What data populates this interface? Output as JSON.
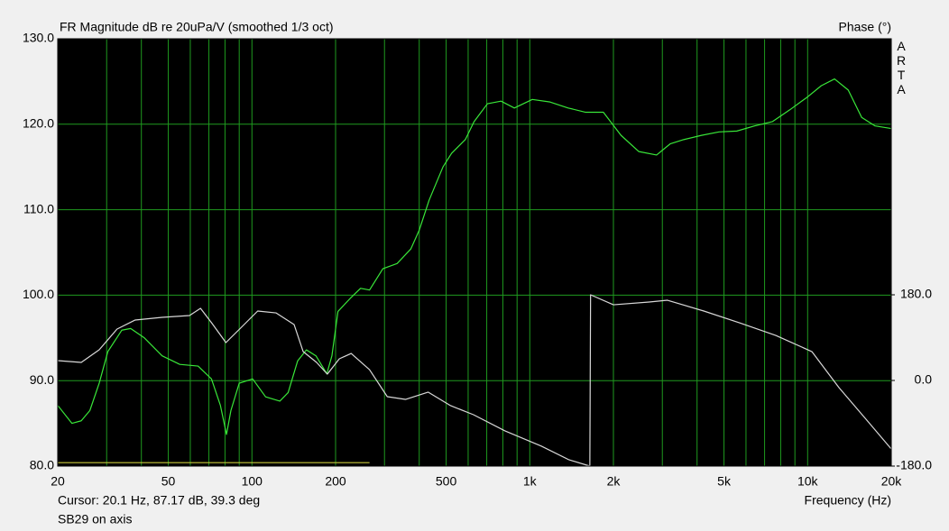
{
  "chart_data": {
    "type": "line",
    "title": "FR Magnitude dB re 20uPa/V (smoothed 1/3 oct)",
    "y2_label": "Phase (°)",
    "x_label": "Frequency (Hz)",
    "brand": "ARTA",
    "cursor_text": "Cursor: 20.1 Hz, 87.17 dB, 39.3 deg",
    "caption": "SB29 on axis",
    "xscale": "log",
    "xlim": [
      20,
      20000
    ],
    "xticks": [
      20,
      50,
      100,
      200,
      500,
      {
        "value": 1000,
        "label": "1k"
      },
      {
        "value": 2000,
        "label": "2k"
      },
      {
        "value": 5000,
        "label": "5k"
      },
      {
        "value": 10000,
        "label": "10k"
      },
      {
        "value": 20000,
        "label": "20k"
      }
    ],
    "xgrid_minor": [
      30,
      40,
      60,
      70,
      80,
      90,
      300,
      400,
      600,
      700,
      800,
      900,
      3000,
      4000,
      6000,
      7000,
      8000,
      9000
    ],
    "ylim": [
      80,
      130
    ],
    "yticks": [
      {
        "value": 80,
        "label": "80.0"
      },
      {
        "value": 90,
        "label": "90.0"
      },
      {
        "value": 100,
        "label": "100.0"
      },
      {
        "value": 110,
        "label": "110.0"
      },
      {
        "value": 120,
        "label": "120.0"
      },
      {
        "value": 130,
        "label": "130.0"
      }
    ],
    "y2lim": [
      -180,
      718.1
    ],
    "y2ticks": [
      {
        "value": -180,
        "label": "-180.0"
      },
      {
        "value": 0,
        "label": "0.0"
      },
      {
        "value": 180,
        "label": "180.0"
      }
    ],
    "grid": true,
    "grid_color": "#1f9a1f",
    "background": "#000000",
    "series": [
      {
        "color": "#39e639",
        "x": [
          20,
          22.5,
          24.3,
          26.1,
          28.2,
          30.3,
          34,
          36.6,
          41,
          47.5,
          55,
          64,
          71.5,
          77,
          81,
          84,
          90,
          100.6,
          112,
          126,
          135,
          146,
          157,
          170,
          186,
          194,
          204,
          227,
          246,
          265,
          296,
          333,
          373,
          400,
          434,
          487,
          523,
          586,
          630,
          704,
          788,
          880,
          1021,
          1183,
          1374,
          1590,
          1840,
          2130,
          2470,
          2860,
          3200,
          3580,
          4150,
          4800,
          5560,
          6440,
          7460,
          8640,
          10000,
          11190,
          12500,
          14000,
          15650,
          17500,
          20000
        ],
        "values": [
          87.1,
          85.0,
          85.3,
          86.5,
          89.7,
          93.4,
          95.9,
          96.1,
          95.0,
          92.9,
          91.9,
          91.7,
          90.2,
          87.1,
          83.7,
          86.5,
          89.7,
          90.2,
          88.1,
          87.6,
          88.6,
          92.3,
          93.6,
          92.9,
          90.8,
          92.9,
          98.1,
          99.7,
          100.8,
          100.6,
          103.1,
          103.7,
          105.4,
          107.6,
          111.1,
          115.0,
          116.6,
          118.2,
          120.3,
          122.4,
          122.7,
          121.9,
          122.9,
          122.6,
          121.9,
          121.4,
          121.4,
          118.7,
          116.8,
          116.4,
          117.7,
          118.2,
          118.7,
          119.1,
          119.2,
          119.8,
          120.3,
          121.7,
          123.2,
          124.5,
          125.3,
          124.0,
          120.8,
          119.8,
          119.5
        ]
      },
      {
        "color": "#d8d8d8",
        "axis": "y2",
        "x": [
          20,
          24.3,
          28.2,
          32.7,
          38,
          47.5,
          59.6,
          65.3,
          71.6,
          80.6,
          90.3,
          104.9,
          122,
          141.8,
          152.9,
          170.9,
          186.8,
          206.3,
          227.6,
          265,
          307,
          357,
          431,
          519,
          627,
          814,
          1100,
          1383,
          1645,
          1655,
          2000,
          2690,
          3130,
          4230,
          5700,
          7680,
          10360,
          12970,
          16220,
          20000
        ],
        "values": [
          41.7,
          37.9,
          64.4,
          108,
          127,
          132.6,
          136.4,
          151.6,
          121,
          79.6,
          108,
          145.9,
          142,
          117.5,
          60.6,
          37.9,
          13.3,
          45.5,
          56.8,
          22.7,
          -34.1,
          -39.8,
          -24.6,
          -53,
          -72,
          -106,
          -138,
          -166.7,
          -180,
          180,
          159,
          164.8,
          168.6,
          145.9,
          121,
          94.7,
          60.6,
          -15.2,
          -81.5,
          -144
        ]
      },
      {
        "color": "#c8c83c",
        "x": [
          20,
          265
        ],
        "values": [
          80.4,
          80.4
        ]
      }
    ]
  }
}
